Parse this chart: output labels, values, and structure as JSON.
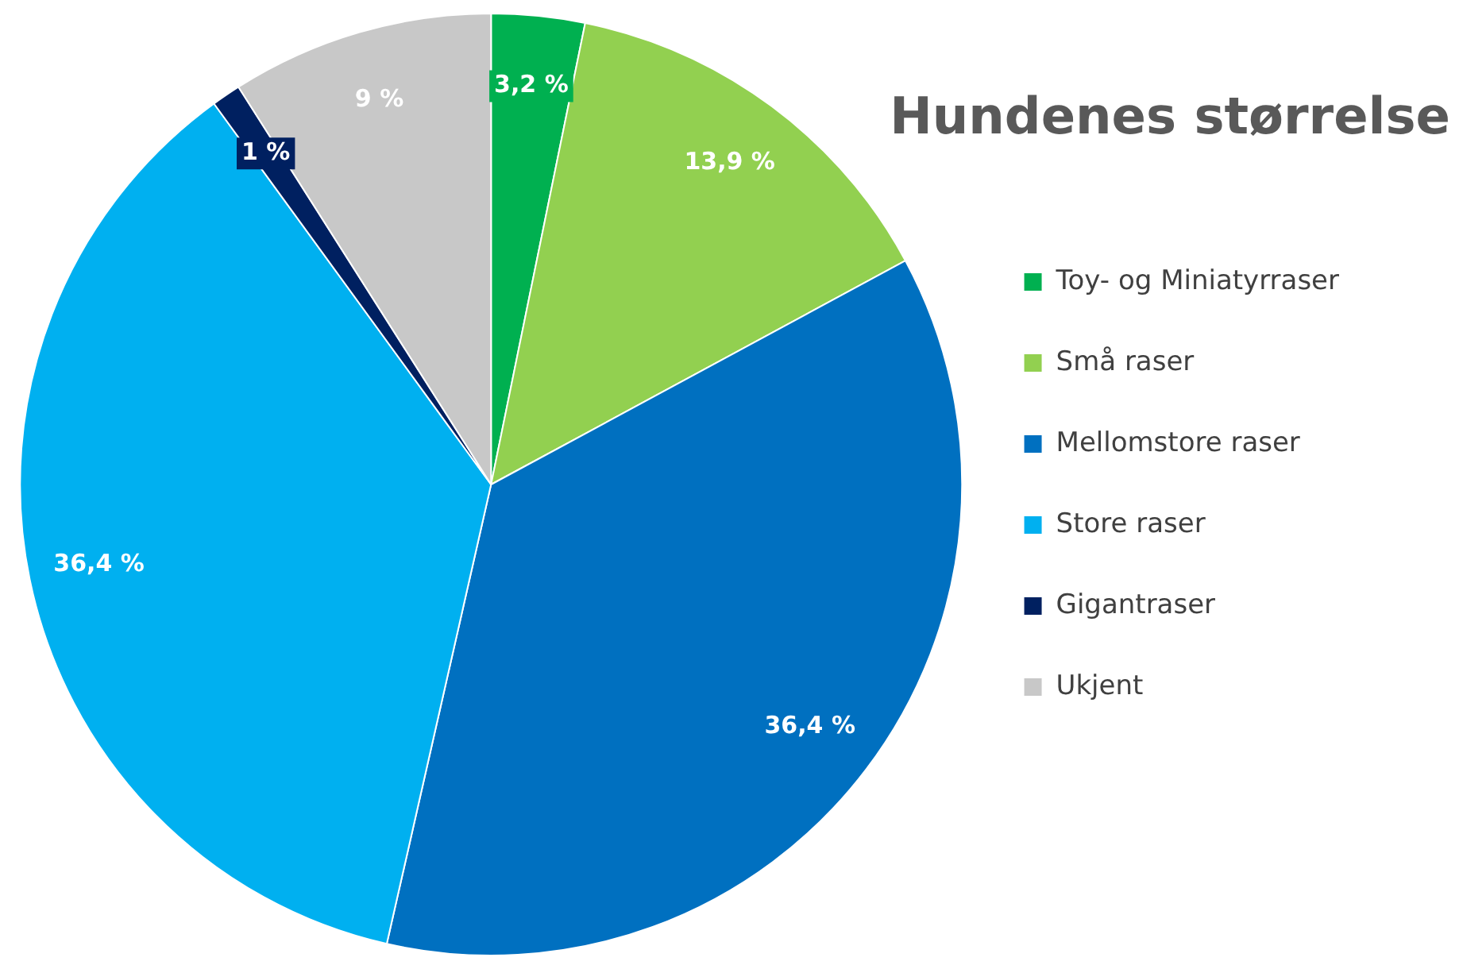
{
  "chart_data": {
    "type": "pie",
    "title": "Hundenes størrelse",
    "categories": [
      "Toy- og Miniatyrraser",
      "Små raser",
      "Mellomstore raser",
      "Store raser",
      "Gigantraser",
      "Ukjent"
    ],
    "values": [
      3.2,
      13.9,
      36.4,
      36.4,
      1,
      9
    ],
    "colors": [
      "#00b050",
      "#92d050",
      "#0070c0",
      "#00b0f0",
      "#002060",
      "#c8c8c8"
    ],
    "value_labels": [
      "3,2 %",
      "13,9 %",
      "36,4 %",
      "36,4 %",
      "1 %",
      "9 %"
    ],
    "legend": "right"
  }
}
